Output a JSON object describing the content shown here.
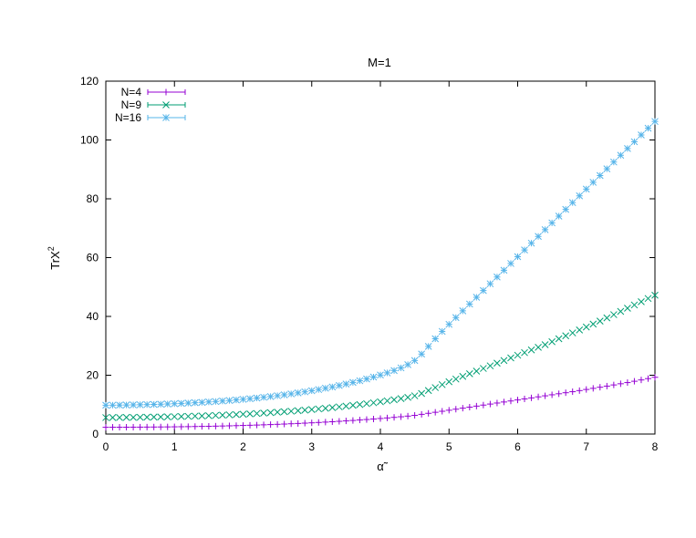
{
  "chart_data": {
    "type": "scatter",
    "title": "M=1",
    "xlabel": "α̃",
    "ylabel_base": "TrX",
    "ylabel_sup": "2",
    "xlim": [
      0,
      8
    ],
    "ylim": [
      0,
      120
    ],
    "x_ticks": [
      0,
      1,
      2,
      3,
      4,
      5,
      6,
      7,
      8
    ],
    "y_ticks": [
      0,
      20,
      40,
      60,
      80,
      100,
      120
    ],
    "grid": false,
    "legend_position": "top-left",
    "series": [
      {
        "name": "N=4",
        "marker": "plus",
        "color": "#9400d3",
        "x": [
          0.0,
          0.1,
          0.2,
          0.3,
          0.4,
          0.5,
          0.6,
          0.7,
          0.8,
          0.9,
          1.0,
          1.1,
          1.2,
          1.3,
          1.4,
          1.5,
          1.6,
          1.7,
          1.8,
          1.9,
          2.0,
          2.1,
          2.2,
          2.3,
          2.4,
          2.5,
          2.6,
          2.7,
          2.8,
          2.9,
          3.0,
          3.1,
          3.2,
          3.3,
          3.4,
          3.5,
          3.6,
          3.7,
          3.8,
          3.9,
          4.0,
          4.1,
          4.2,
          4.3,
          4.4,
          4.5,
          4.6,
          4.7,
          4.8,
          4.9,
          5.0,
          5.1,
          5.2,
          5.3,
          5.4,
          5.5,
          5.6,
          5.7,
          5.8,
          5.9,
          6.0,
          6.1,
          6.2,
          6.3,
          6.4,
          6.5,
          6.6,
          6.7,
          6.8,
          6.9,
          7.0,
          7.1,
          7.2,
          7.3,
          7.4,
          7.5,
          7.6,
          7.7,
          7.8,
          7.9,
          8.0
        ],
        "y": [
          2.3,
          2.31,
          2.32,
          2.33,
          2.34,
          2.35,
          2.37,
          2.39,
          2.41,
          2.43,
          2.46,
          2.49,
          2.52,
          2.56,
          2.6,
          2.64,
          2.69,
          2.74,
          2.8,
          2.86,
          2.92,
          2.99,
          3.06,
          3.14,
          3.22,
          3.31,
          3.4,
          3.5,
          3.6,
          3.71,
          3.82,
          3.94,
          4.06,
          4.19,
          4.33,
          4.47,
          4.62,
          4.78,
          4.94,
          5.11,
          5.29,
          5.48,
          5.67,
          5.88,
          6.1,
          6.35,
          6.7,
          7.05,
          7.4,
          7.75,
          8.1,
          8.45,
          8.8,
          9.15,
          9.5,
          9.85,
          10.2,
          10.55,
          10.9,
          11.25,
          11.6,
          11.95,
          12.3,
          12.65,
          13.0,
          13.35,
          13.7,
          14.05,
          14.4,
          14.78,
          15.16,
          15.54,
          15.92,
          16.3,
          16.7,
          17.1,
          17.5,
          17.95,
          18.4,
          18.85,
          19.3
        ]
      },
      {
        "name": "N=9",
        "marker": "cross",
        "color": "#009e73",
        "x": [
          0.0,
          0.1,
          0.2,
          0.3,
          0.4,
          0.5,
          0.6,
          0.7,
          0.8,
          0.9,
          1.0,
          1.1,
          1.2,
          1.3,
          1.4,
          1.5,
          1.6,
          1.7,
          1.8,
          1.9,
          2.0,
          2.1,
          2.2,
          2.3,
          2.4,
          2.5,
          2.6,
          2.7,
          2.8,
          2.9,
          3.0,
          3.1,
          3.2,
          3.3,
          3.4,
          3.5,
          3.6,
          3.7,
          3.8,
          3.9,
          4.0,
          4.1,
          4.2,
          4.3,
          4.4,
          4.5,
          4.6,
          4.7,
          4.8,
          4.9,
          5.0,
          5.1,
          5.2,
          5.3,
          5.4,
          5.5,
          5.6,
          5.7,
          5.8,
          5.9,
          6.0,
          6.1,
          6.2,
          6.3,
          6.4,
          6.5,
          6.6,
          6.7,
          6.8,
          6.9,
          7.0,
          7.1,
          7.2,
          7.3,
          7.4,
          7.5,
          7.6,
          7.7,
          7.8,
          7.9,
          8.0
        ],
        "y": [
          5.6,
          5.61,
          5.63,
          5.65,
          5.67,
          5.7,
          5.73,
          5.77,
          5.81,
          5.86,
          5.91,
          5.97,
          6.03,
          6.1,
          6.17,
          6.25,
          6.34,
          6.43,
          6.53,
          6.64,
          6.75,
          6.87,
          7.0,
          7.14,
          7.29,
          7.44,
          7.6,
          7.77,
          7.95,
          8.14,
          8.34,
          8.55,
          8.77,
          9.0,
          9.24,
          9.49,
          9.76,
          10.04,
          10.33,
          10.64,
          10.96,
          11.3,
          11.66,
          12.05,
          12.48,
          13.0,
          13.8,
          14.8,
          15.8,
          16.8,
          17.8,
          18.7,
          19.6,
          20.5,
          21.4,
          22.3,
          23.2,
          24.1,
          25.0,
          25.9,
          26.8,
          27.7,
          28.6,
          29.5,
          30.4,
          31.4,
          32.4,
          33.4,
          34.4,
          35.4,
          36.4,
          37.4,
          38.4,
          39.5,
          40.6,
          41.7,
          42.8,
          43.9,
          45.0,
          46.1,
          47.2
        ]
      },
      {
        "name": "N=16",
        "marker": "star",
        "color": "#56b4e9",
        "x": [
          0.0,
          0.1,
          0.2,
          0.3,
          0.4,
          0.5,
          0.6,
          0.7,
          0.8,
          0.9,
          1.0,
          1.1,
          1.2,
          1.3,
          1.4,
          1.5,
          1.6,
          1.7,
          1.8,
          1.9,
          2.0,
          2.1,
          2.2,
          2.3,
          2.4,
          2.5,
          2.6,
          2.7,
          2.8,
          2.9,
          3.0,
          3.1,
          3.2,
          3.3,
          3.4,
          3.5,
          3.6,
          3.7,
          3.8,
          3.9,
          4.0,
          4.1,
          4.2,
          4.3,
          4.4,
          4.5,
          4.6,
          4.7,
          4.8,
          4.9,
          5.0,
          5.1,
          5.2,
          5.3,
          5.4,
          5.5,
          5.6,
          5.7,
          5.8,
          5.9,
          6.0,
          6.1,
          6.2,
          6.3,
          6.4,
          6.5,
          6.6,
          6.7,
          6.8,
          6.9,
          7.0,
          7.1,
          7.2,
          7.3,
          7.4,
          7.5,
          7.6,
          7.7,
          7.8,
          7.9,
          8.0
        ],
        "y": [
          9.8,
          9.82,
          9.85,
          9.88,
          9.92,
          9.97,
          10.02,
          10.08,
          10.15,
          10.23,
          10.32,
          10.42,
          10.53,
          10.65,
          10.78,
          10.92,
          11.07,
          11.23,
          11.41,
          11.6,
          11.8,
          12.02,
          12.25,
          12.5,
          12.76,
          13.04,
          13.34,
          13.66,
          14.0,
          14.36,
          14.74,
          15.14,
          15.57,
          16.02,
          16.5,
          17.01,
          17.55,
          18.12,
          18.73,
          19.38,
          20.07,
          20.8,
          21.6,
          22.5,
          23.6,
          25.0,
          27.2,
          29.8,
          32.4,
          34.9,
          37.3,
          39.6,
          41.9,
          44.2,
          46.5,
          48.8,
          51.1,
          53.4,
          55.7,
          58.0,
          60.3,
          62.6,
          64.9,
          67.2,
          69.5,
          71.8,
          74.1,
          76.4,
          78.7,
          81.0,
          83.3,
          85.6,
          87.9,
          90.2,
          92.5,
          94.8,
          97.1,
          99.4,
          101.7,
          104.0,
          106.3
        ]
      }
    ]
  }
}
